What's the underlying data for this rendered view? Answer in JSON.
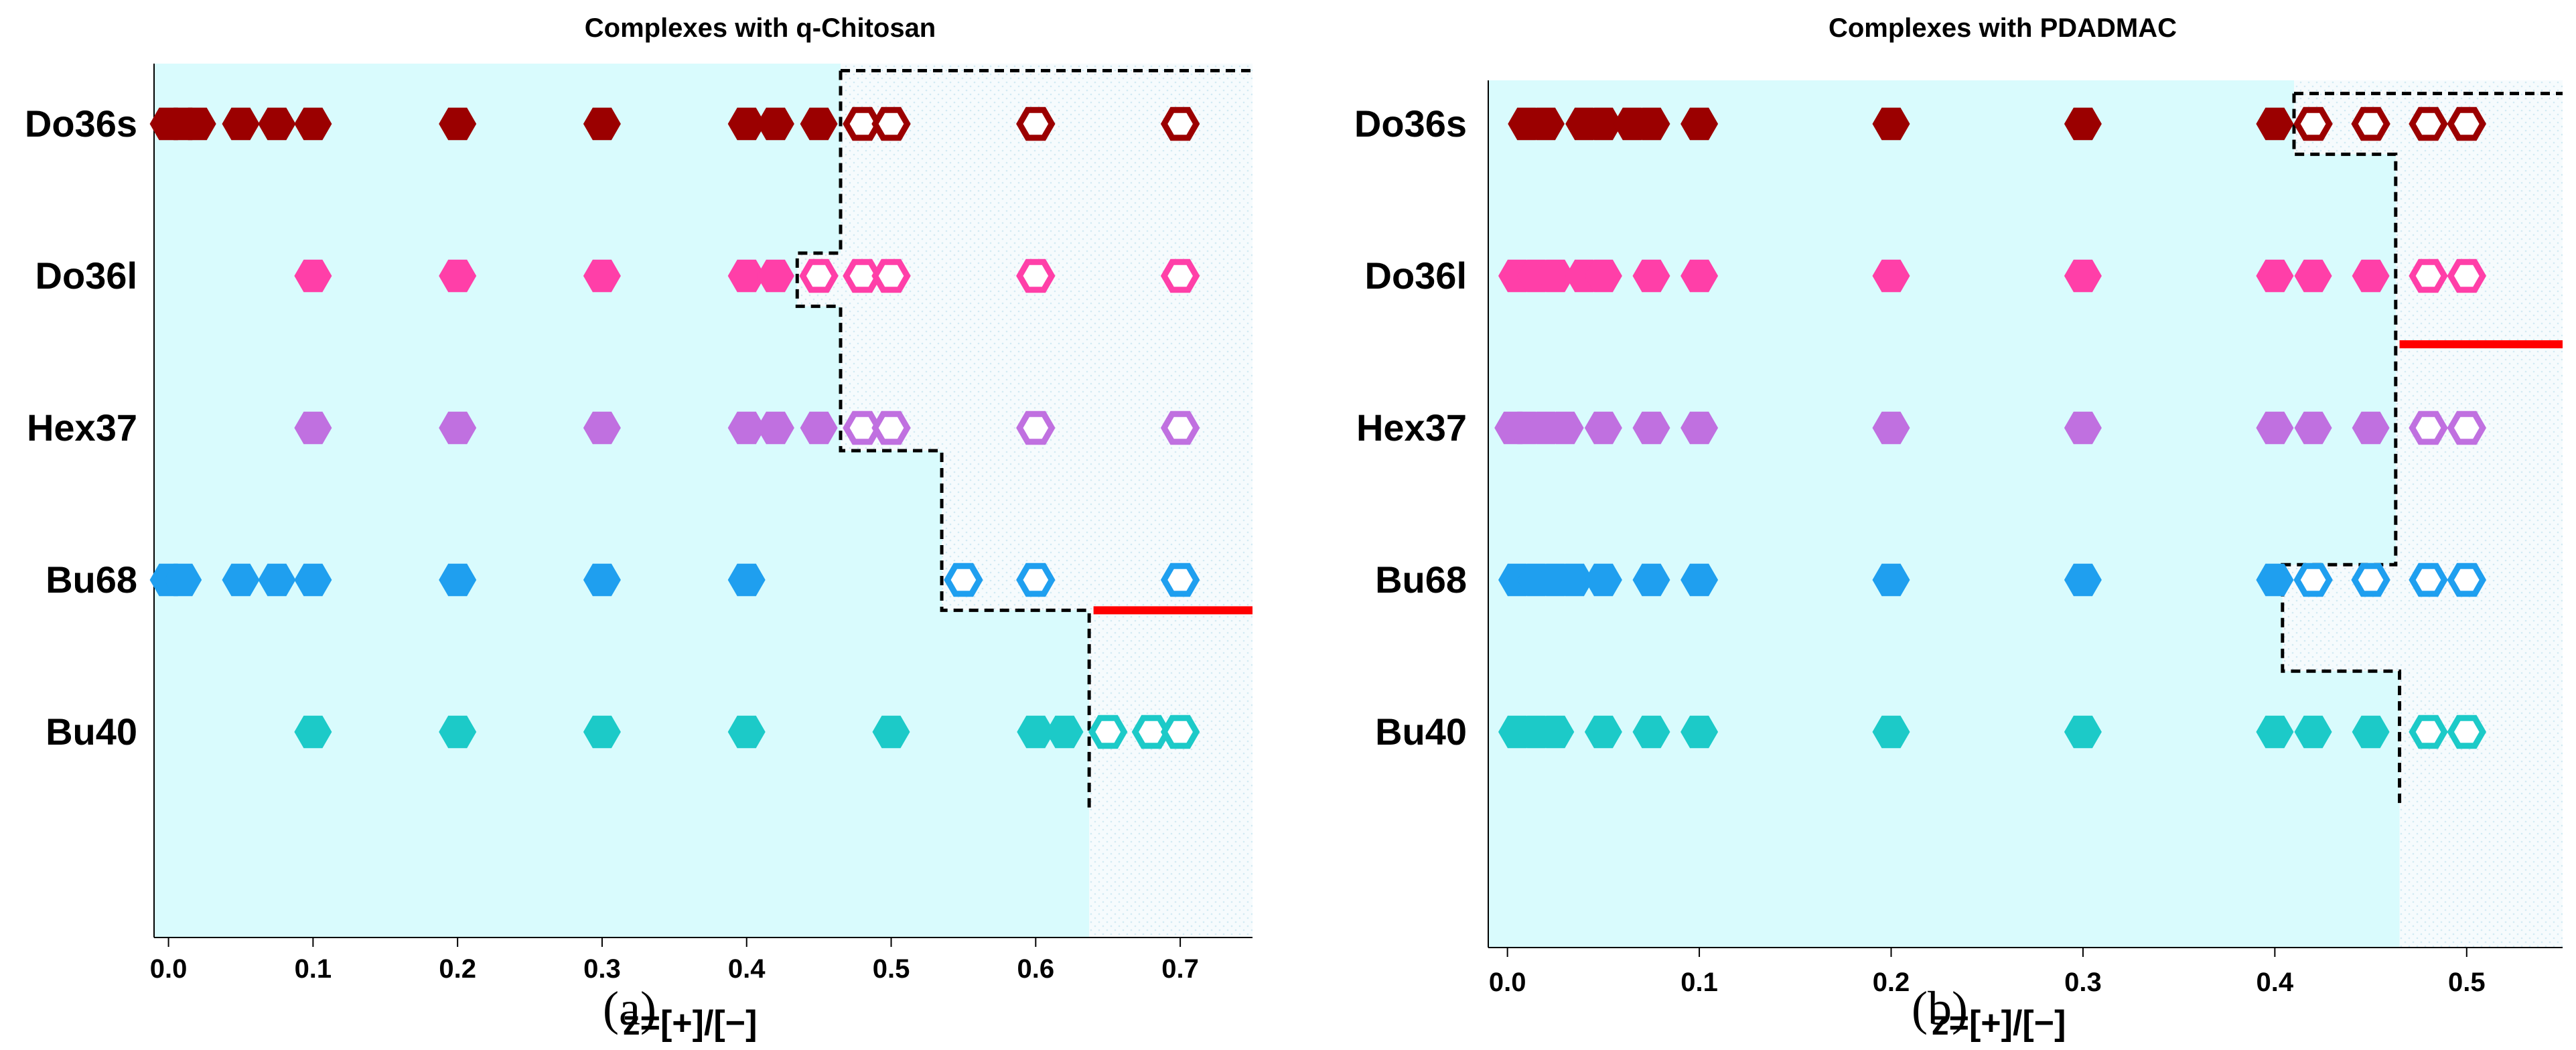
{
  "chart_data": [
    {
      "type": "scatter",
      "panel_label": "(a)",
      "title": "Complexes with q-Chitosan",
      "xlabel": "z=[+]/[−]",
      "ylabel": "",
      "xlim": [
        -0.01,
        0.75
      ],
      "xticks": [
        0.0,
        0.1,
        0.2,
        0.3,
        0.4,
        0.5,
        0.6,
        0.7
      ],
      "xtick_labels": [
        "0.0",
        "0.1",
        "0.2",
        "0.3",
        "0.4",
        "0.5",
        "0.6",
        "0.7"
      ],
      "categories": [
        "Do36s",
        "Do36l",
        "Hex37",
        "Bu68",
        "Bu40"
      ],
      "colors": {
        "Do36s": "#9b0000",
        "Do36l": "#ff3fa8",
        "Hex37": "#c070e0",
        "Bu68": "#1f9fef",
        "Bu40": "#1ccac8"
      },
      "legend_note": "filled hexagon = complex formed; open hexagon = no complex",
      "series": [
        {
          "name": "Do36s",
          "filled": [
            0.0,
            0.01,
            0.02,
            0.05,
            0.075,
            0.1,
            0.2,
            0.3,
            0.4,
            0.42,
            0.45
          ],
          "open": [
            0.48,
            0.5,
            0.6,
            0.7
          ]
        },
        {
          "name": "Do36l",
          "filled": [
            0.1,
            0.2,
            0.3,
            0.4,
            0.42
          ],
          "open": [
            0.45,
            0.48,
            0.5,
            0.6,
            0.7
          ]
        },
        {
          "name": "Hex37",
          "filled": [
            0.1,
            0.2,
            0.3,
            0.4,
            0.42,
            0.45
          ],
          "open": [
            0.48,
            0.5,
            0.6,
            0.7
          ]
        },
        {
          "name": "Bu68",
          "filled": [
            0.0,
            0.01,
            0.05,
            0.075,
            0.1,
            0.2,
            0.3,
            0.4
          ],
          "open": [
            0.55,
            0.6,
            0.7
          ]
        },
        {
          "name": "Bu40",
          "filled": [
            0.1,
            0.2,
            0.3,
            0.4,
            0.5,
            0.6,
            0.62
          ],
          "open": [
            0.65,
            0.68,
            0.7
          ]
        }
      ],
      "boundary": [
        [
          0.465,
          -0.35
        ],
        [
          0.75,
          -0.35
        ],
        [
          0.465,
          -0.35
        ],
        [
          0.465,
          0.85
        ],
        [
          0.435,
          0.85
        ],
        [
          0.435,
          1.2
        ],
        [
          0.465,
          1.2
        ],
        [
          0.465,
          2.15
        ],
        [
          0.535,
          2.15
        ],
        [
          0.535,
          3.2
        ],
        [
          0.637,
          3.2
        ],
        [
          0.637,
          4.5
        ]
      ],
      "red_line": {
        "x": [
          0.64,
          0.75
        ],
        "y": 3.2
      },
      "shaded_region": "cyan fill left of boundary"
    },
    {
      "type": "scatter",
      "panel_label": "(b)",
      "title": "Complexes with PDADMAC",
      "xlabel": "z=[+]/[−]",
      "ylabel": "",
      "xlim": [
        -0.01,
        0.55
      ],
      "xticks": [
        0.0,
        0.1,
        0.2,
        0.3,
        0.4,
        0.5
      ],
      "xtick_labels": [
        "0.0",
        "0.1",
        "0.2",
        "0.3",
        "0.4",
        "0.5"
      ],
      "categories": [
        "Do36s",
        "Do36l",
        "Hex37",
        "Bu68",
        "Bu40"
      ],
      "colors": {
        "Do36s": "#9b0000",
        "Do36l": "#ff3fa8",
        "Hex37": "#c070e0",
        "Bu68": "#1f9fef",
        "Bu40": "#1ccac8"
      },
      "legend_note": "filled hexagon = complex formed; open hexagon = no complex",
      "series": [
        {
          "name": "Do36s",
          "filled": [
            0.01,
            0.02,
            0.04,
            0.05,
            0.065,
            0.075,
            0.1,
            0.2,
            0.3,
            0.4
          ],
          "open": [
            0.42,
            0.45,
            0.48,
            0.5
          ]
        },
        {
          "name": "Do36l",
          "filled": [
            0.005,
            0.015,
            0.025,
            0.04,
            0.05,
            0.075,
            0.1,
            0.2,
            0.3,
            0.4,
            0.42,
            0.45
          ],
          "open": [
            0.48,
            0.5
          ]
        },
        {
          "name": "Hex37",
          "filled": [
            0.003,
            0.01,
            0.02,
            0.03,
            0.05,
            0.075,
            0.1,
            0.2,
            0.3,
            0.4,
            0.42,
            0.45
          ],
          "open": [
            0.48,
            0.5
          ]
        },
        {
          "name": "Bu68",
          "filled": [
            0.005,
            0.015,
            0.025,
            0.035,
            0.05,
            0.075,
            0.1,
            0.2,
            0.3,
            0.4
          ],
          "open": [
            0.42,
            0.45,
            0.48,
            0.5
          ]
        },
        {
          "name": "Bu40",
          "filled": [
            0.005,
            0.015,
            0.025,
            0.05,
            0.075,
            0.1,
            0.2,
            0.3,
            0.4,
            0.42,
            0.45
          ],
          "open": [
            0.48,
            0.5
          ]
        }
      ],
      "boundary": [
        [
          0.41,
          -0.2
        ],
        [
          0.55,
          -0.2
        ],
        [
          0.41,
          -0.2
        ],
        [
          0.41,
          0.2
        ],
        [
          0.463,
          0.2
        ],
        [
          0.463,
          2.9
        ],
        [
          0.404,
          2.9
        ],
        [
          0.404,
          3.6
        ],
        [
          0.465,
          3.6
        ],
        [
          0.465,
          4.5
        ]
      ],
      "red_line": {
        "x": [
          0.465,
          0.55
        ],
        "y": 1.45
      },
      "shaded_region": "cyan fill left of boundary"
    }
  ]
}
